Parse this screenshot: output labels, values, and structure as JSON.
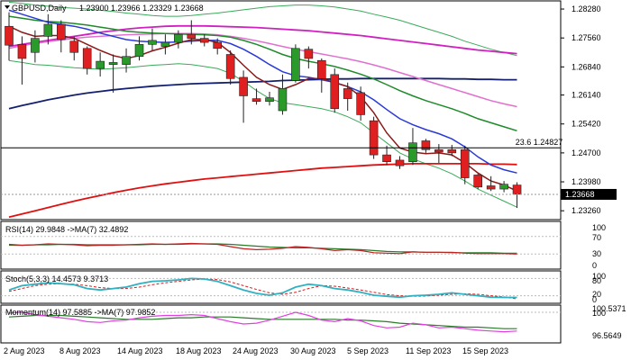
{
  "header": {
    "symbol": "GBPUSD,Daily",
    "ohlc": "1.23900 1.23966 1.23329 1.23668"
  },
  "price_axis": {
    "ticks": [
      "1.28280",
      "1.27560",
      "1.26840",
      "1.26140",
      "1.25420",
      "1.24700",
      "1.23980",
      "1.23260"
    ],
    "ticks_num": [
      1.2828,
      1.2756,
      1.2684,
      1.2614,
      1.2542,
      1.247,
      1.2398,
      1.2326
    ],
    "current_price": "1.23668",
    "current_num": 1.23668,
    "fib_label": "23.6 1.24827",
    "fib_value": 1.24827
  },
  "rsi_panel": {
    "label": "RSI(14) 29.9848 ->MA(7) 32.4892",
    "levels": [
      "100",
      "70",
      "30",
      "0"
    ]
  },
  "stoch_panel": {
    "label": "Stoch(5,3,3) 14.4573 9.3713",
    "levels": [
      "100",
      "80",
      "20",
      "0"
    ]
  },
  "momentum_panel": {
    "label": "Momentum(14) 97.5885 ->MA(7) 97.9852",
    "levels": [
      "100.5371",
      "100",
      "96.5649"
    ]
  },
  "x_axis": {
    "labels": [
      "2 Aug 2023",
      "8 Aug 2023",
      "14 Aug 2023",
      "18 Aug 2023",
      "24 Aug 2023",
      "30 Aug 2023",
      "5 Sep 2023",
      "11 Sep 2023",
      "15 Sep 2023"
    ]
  },
  "colors": {
    "bull": "#2a9a2a",
    "bear": "#e02020",
    "ma_fast": "#8a1a1a",
    "ma_blue": "#2a3ad8",
    "ma_green": "#1e8a2a",
    "ma_pink": "#e070d0",
    "ma_magenta": "#d020c0",
    "ma_navy": "#14206e",
    "ma_red200": "#e01010",
    "bollinger": "#3aaa5a",
    "rsi": "#c02020",
    "rsi_ma": "#2a7a2a",
    "stoch_k": "#30b0c0",
    "stoch_d": "#d02020",
    "momentum": "#e040e0",
    "momentum_ma": "#2a7a2a"
  },
  "chart_data": {
    "type": "candlestick",
    "title": "GBPUSD,Daily",
    "ylim": [
      1.2304,
      1.2846
    ],
    "candles": [
      {
        "o": 1.2785,
        "h": 1.282,
        "l": 1.27,
        "c": 1.2738
      },
      {
        "o": 1.274,
        "h": 1.276,
        "l": 1.264,
        "c": 1.2705
      },
      {
        "o": 1.272,
        "h": 1.2775,
        "l": 1.2695,
        "c": 1.2755
      },
      {
        "o": 1.276,
        "h": 1.2815,
        "l": 1.274,
        "c": 1.279
      },
      {
        "o": 1.279,
        "h": 1.28,
        "l": 1.272,
        "c": 1.2752
      },
      {
        "o": 1.2748,
        "h": 1.276,
        "l": 1.27,
        "c": 1.272
      },
      {
        "o": 1.273,
        "h": 1.2735,
        "l": 1.2665,
        "c": 1.268
      },
      {
        "o": 1.268,
        "h": 1.272,
        "l": 1.266,
        "c": 1.2698
      },
      {
        "o": 1.269,
        "h": 1.2715,
        "l": 1.262,
        "c": 1.2695
      },
      {
        "o": 1.269,
        "h": 1.273,
        "l": 1.267,
        "c": 1.271
      },
      {
        "o": 1.271,
        "h": 1.276,
        "l": 1.27,
        "c": 1.274
      },
      {
        "o": 1.274,
        "h": 1.278,
        "l": 1.2725,
        "c": 1.275
      },
      {
        "o": 1.2735,
        "h": 1.2765,
        "l": 1.2715,
        "c": 1.2745
      },
      {
        "o": 1.2745,
        "h": 1.2775,
        "l": 1.273,
        "c": 1.2765
      },
      {
        "o": 1.2765,
        "h": 1.28,
        "l": 1.274,
        "c": 1.2755
      },
      {
        "o": 1.2755,
        "h": 1.2765,
        "l": 1.2735,
        "c": 1.2745
      },
      {
        "o": 1.2745,
        "h": 1.2755,
        "l": 1.2715,
        "c": 1.273
      },
      {
        "o": 1.2715,
        "h": 1.2725,
        "l": 1.264,
        "c": 1.2655
      },
      {
        "o": 1.2658,
        "h": 1.2675,
        "l": 1.2545,
        "c": 1.2612
      },
      {
        "o": 1.2605,
        "h": 1.263,
        "l": 1.259,
        "c": 1.2598
      },
      {
        "o": 1.2598,
        "h": 1.2622,
        "l": 1.2588,
        "c": 1.2607
      },
      {
        "o": 1.2575,
        "h": 1.2665,
        "l": 1.2565,
        "c": 1.263
      },
      {
        "o": 1.265,
        "h": 1.274,
        "l": 1.2645,
        "c": 1.273
      },
      {
        "o": 1.2728,
        "h": 1.2735,
        "l": 1.268,
        "c": 1.2705
      },
      {
        "o": 1.27,
        "h": 1.2705,
        "l": 1.262,
        "c": 1.2655
      },
      {
        "o": 1.2665,
        "h": 1.268,
        "l": 1.257,
        "c": 1.258
      },
      {
        "o": 1.263,
        "h": 1.2645,
        "l": 1.2575,
        "c": 1.2605
      },
      {
        "o": 1.262,
        "h": 1.2635,
        "l": 1.255,
        "c": 1.2565
      },
      {
        "o": 1.255,
        "h": 1.256,
        "l": 1.2455,
        "c": 1.2465
      },
      {
        "o": 1.2465,
        "h": 1.2488,
        "l": 1.244,
        "c": 1.2448
      },
      {
        "o": 1.2452,
        "h": 1.2462,
        "l": 1.243,
        "c": 1.2438
      },
      {
        "o": 1.2448,
        "h": 1.2532,
        "l": 1.244,
        "c": 1.2495
      },
      {
        "o": 1.25,
        "h": 1.2505,
        "l": 1.247,
        "c": 1.2478
      },
      {
        "o": 1.2478,
        "h": 1.2492,
        "l": 1.2445,
        "c": 1.2472
      },
      {
        "o": 1.2478,
        "h": 1.249,
        "l": 1.2462,
        "c": 1.247
      },
      {
        "o": 1.2478,
        "h": 1.2488,
        "l": 1.2392,
        "c": 1.2408
      },
      {
        "o": 1.2415,
        "h": 1.2418,
        "l": 1.238,
        "c": 1.2385
      },
      {
        "o": 1.2388,
        "h": 1.2412,
        "l": 1.2375,
        "c": 1.238
      },
      {
        "o": 1.238,
        "h": 1.24,
        "l": 1.2372,
        "c": 1.2392
      },
      {
        "o": 1.239,
        "h": 1.2397,
        "l": 1.2333,
        "c": 1.2367
      }
    ],
    "ma_fast": [
      1.2785,
      1.277,
      1.276,
      1.2762,
      1.2762,
      1.2755,
      1.274,
      1.2725,
      1.2712,
      1.2705,
      1.2712,
      1.2724,
      1.2733,
      1.2743,
      1.2752,
      1.2752,
      1.2745,
      1.272,
      1.2688,
      1.2658,
      1.264,
      1.2628,
      1.264,
      1.2655,
      1.2655,
      1.2645,
      1.2635,
      1.261,
      1.257,
      1.252,
      1.2482,
      1.2472,
      1.2468,
      1.247,
      1.2465,
      1.2445,
      1.242,
      1.24,
      1.239,
      1.2375
    ],
    "ma_blue": [
      1.2825,
      1.2815,
      1.2805,
      1.2795,
      1.279,
      1.2785,
      1.2778,
      1.2768,
      1.276,
      1.2752,
      1.2748,
      1.2746,
      1.2745,
      1.2746,
      1.2748,
      1.275,
      1.275,
      1.2742,
      1.2728,
      1.271,
      1.269,
      1.2672,
      1.2662,
      1.2658,
      1.2652,
      1.2645,
      1.2635,
      1.2622,
      1.2602,
      1.2578,
      1.2555,
      1.254,
      1.2528,
      1.2518,
      1.2505,
      1.2485,
      1.246,
      1.244,
      1.2428,
      1.242
    ],
    "ma_green": [
      1.281,
      1.2805,
      1.28,
      1.2797,
      1.2795,
      1.2792,
      1.2788,
      1.2783,
      1.2778,
      1.2773,
      1.277,
      1.2768,
      1.2767,
      1.2766,
      1.2765,
      1.2764,
      1.2762,
      1.2758,
      1.275,
      1.274,
      1.2728,
      1.2715,
      1.2705,
      1.2698,
      1.2692,
      1.2685,
      1.2676,
      1.2666,
      1.2654,
      1.264,
      1.2625,
      1.2612,
      1.26,
      1.259,
      1.258,
      1.2568,
      1.2555,
      1.2545,
      1.2535,
      1.2525
    ],
    "ma_pink": [
      1.273,
      1.2737,
      1.2742,
      1.2747,
      1.2751,
      1.2755,
      1.2758,
      1.276,
      1.2762,
      1.2764,
      1.2765,
      1.2766,
      1.2767,
      1.2767,
      1.2767,
      1.2766,
      1.2764,
      1.276,
      1.2755,
      1.2749,
      1.2742,
      1.2735,
      1.2728,
      1.2722,
      1.2716,
      1.271,
      1.2704,
      1.2697,
      1.2689,
      1.268,
      1.267,
      1.266,
      1.265,
      1.264,
      1.263,
      1.262,
      1.261,
      1.26,
      1.2592,
      1.2585
    ],
    "ma_magenta": [
      1.2735,
      1.274,
      1.2745,
      1.275,
      1.2755,
      1.276,
      1.2765,
      1.277,
      1.2774,
      1.2778,
      1.2781,
      1.2783,
      1.2785,
      1.2786,
      1.2786,
      1.2786,
      1.2785,
      1.2784,
      1.2783,
      1.2782,
      1.278,
      1.2778,
      1.2776,
      1.2774,
      1.2771,
      1.2768,
      1.2765,
      1.2762,
      1.2758,
      1.2754,
      1.275,
      1.2746,
      1.2742,
      1.2738,
      1.2734,
      1.273,
      1.2726,
      1.2723,
      1.272,
      1.2717
    ],
    "ma_navy": [
      1.258,
      1.2588,
      1.2595,
      1.2602,
      1.2608,
      1.2614,
      1.2619,
      1.2623,
      1.2627,
      1.263,
      1.2633,
      1.2636,
      1.2638,
      1.264,
      1.2642,
      1.2643,
      1.2644,
      1.2645,
      1.2646,
      1.2647,
      1.2648,
      1.265,
      1.2651,
      1.2652,
      1.2653,
      1.2654,
      1.2654,
      1.2655,
      1.2655,
      1.2655,
      1.2655,
      1.2655,
      1.2655,
      1.2655,
      1.2654,
      1.2654,
      1.2653,
      1.2653,
      1.2652,
      1.2652
    ],
    "ma_red200": [
      1.231,
      1.2318,
      1.2326,
      1.2334,
      1.2342,
      1.235,
      1.2357,
      1.2364,
      1.2371,
      1.2377,
      1.2383,
      1.2388,
      1.2393,
      1.2397,
      1.2401,
      1.2405,
      1.2408,
      1.2411,
      1.2414,
      1.2417,
      1.242,
      1.2423,
      1.2426,
      1.2429,
      1.2432,
      1.2434,
      1.2436,
      1.2438,
      1.244,
      1.2441,
      1.2442,
      1.2443,
      1.2443,
      1.2443,
      1.2443,
      1.2443,
      1.2443,
      1.2442,
      1.2442,
      1.2441
    ],
    "boll_upper": [
      1.2845,
      1.2842,
      1.2838,
      1.2835,
      1.2832,
      1.283,
      1.2828,
      1.2825,
      1.2822,
      1.2818,
      1.2815,
      1.2812,
      1.281,
      1.281,
      1.2812,
      1.2815,
      1.2818,
      1.2822,
      1.2826,
      1.283,
      1.2834,
      1.2836,
      1.2838,
      1.2838,
      1.2836,
      1.2833,
      1.2828,
      1.2823,
      1.2815,
      1.2808,
      1.28,
      1.279,
      1.278,
      1.277,
      1.276,
      1.2748,
      1.2738,
      1.2728,
      1.272,
      1.2712
    ],
    "boll_lower": [
      1.27,
      1.2695,
      1.269,
      1.2688,
      1.2685,
      1.2682,
      1.268,
      1.2678,
      1.268,
      1.2682,
      1.2685,
      1.2688,
      1.269,
      1.2692,
      1.269,
      1.2685,
      1.268,
      1.2668,
      1.2648,
      1.2625,
      1.2605,
      1.2595,
      1.259,
      1.2585,
      1.258,
      1.2572,
      1.256,
      1.2545,
      1.252,
      1.2495,
      1.247,
      1.2455,
      1.2443,
      1.2432,
      1.2418,
      1.24,
      1.238,
      1.2365,
      1.235,
      1.2335
    ],
    "rsi": [
      52,
      50,
      51,
      53,
      52,
      51,
      49,
      50,
      50,
      51,
      52,
      53,
      52,
      53,
      54,
      53,
      52,
      47,
      42,
      40,
      41,
      43,
      47,
      45,
      42,
      38,
      40,
      38,
      33,
      32,
      31,
      35,
      34,
      34,
      34,
      32,
      31,
      31,
      31,
      30
    ],
    "rsi_ma": [
      50,
      50,
      51,
      51,
      52,
      52,
      51,
      51,
      51,
      51,
      51,
      52,
      52,
      52,
      53,
      53,
      53,
      52,
      50,
      48,
      46,
      45,
      44,
      44,
      43,
      42,
      41,
      40,
      38,
      36,
      35,
      35,
      34,
      34,
      33,
      33,
      33,
      33,
      32,
      32
    ],
    "stoch_k": [
      40,
      55,
      60,
      65,
      62,
      58,
      45,
      40,
      45,
      50,
      62,
      70,
      72,
      75,
      80,
      78,
      70,
      55,
      40,
      28,
      22,
      30,
      50,
      60,
      55,
      45,
      40,
      32,
      22,
      18,
      15,
      20,
      22,
      25,
      30,
      25,
      20,
      15,
      14,
      14
    ],
    "stoch_d": [
      35,
      45,
      55,
      60,
      62,
      60,
      55,
      48,
      45,
      45,
      50,
      58,
      65,
      70,
      75,
      78,
      76,
      68,
      55,
      42,
      30,
      25,
      32,
      45,
      55,
      53,
      47,
      40,
      32,
      24,
      20,
      18,
      19,
      22,
      25,
      27,
      25,
      20,
      16,
      9
    ],
    "momentum": [
      99.9,
      100.0,
      99.7,
      99.5,
      99.3,
      99.1,
      98.8,
      98.7,
      98.9,
      99.0,
      99.3,
      99.5,
      99.6,
      99.6,
      99.7,
      99.6,
      99.2,
      98.8,
      98.5,
      98.6,
      99.0,
      99.5,
      100.0,
      99.6,
      99.0,
      98.8,
      99.2,
      98.9,
      98.3,
      98.0,
      98.1,
      98.6,
      98.4,
      98.0,
      98.1,
      97.9,
      97.7,
      97.6,
      97.5,
      97.6
    ],
    "momentum_ma": [
      99.4,
      99.5,
      99.6,
      99.6,
      99.6,
      99.5,
      99.4,
      99.3,
      99.2,
      99.1,
      99.1,
      99.1,
      99.2,
      99.3,
      99.3,
      99.4,
      99.4,
      99.4,
      99.3,
      99.2,
      99.1,
      99.1,
      99.1,
      99.1,
      99.1,
      99.1,
      99.0,
      99.0,
      98.9,
      98.8,
      98.6,
      98.5,
      98.4,
      98.3,
      98.2,
      98.1,
      98.1,
      98.0,
      97.9,
      97.9
    ],
    "rsi_range": [
      0,
      100
    ],
    "stoch_range": [
      0,
      100
    ],
    "momentum_range": [
      96.3,
      100.7
    ]
  }
}
